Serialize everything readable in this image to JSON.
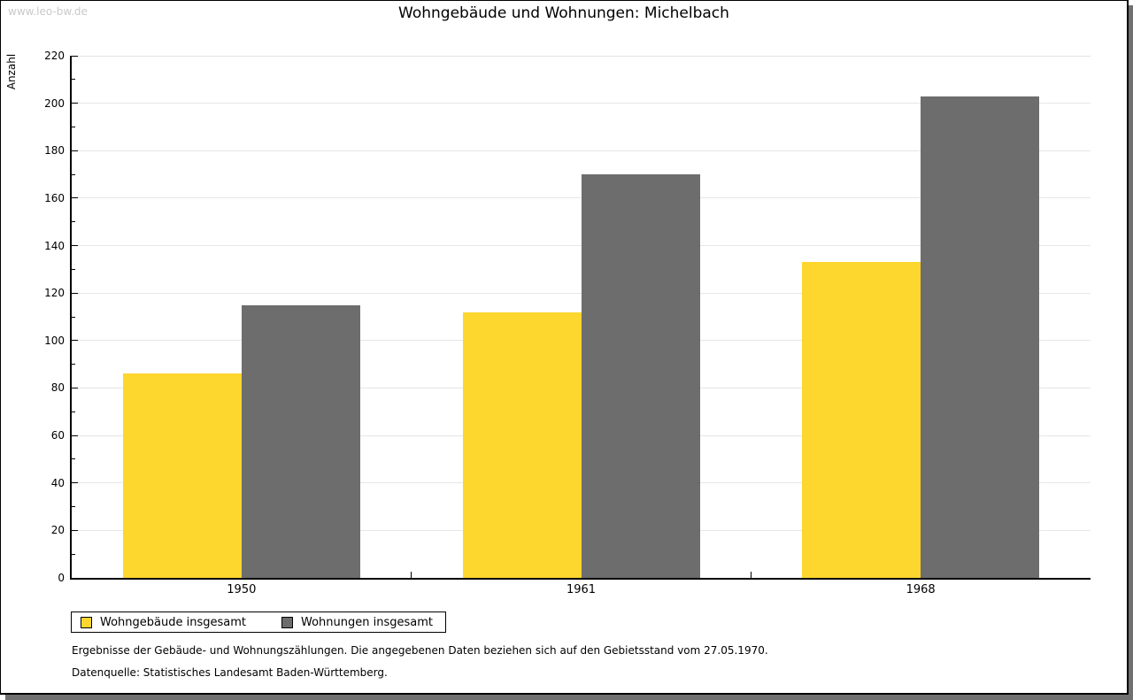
{
  "watermark": "www.leo-bw.de",
  "chart_data": {
    "type": "bar",
    "title": "Wohngebäude und Wohnungen: Michelbach",
    "xlabel": "",
    "ylabel": "Anzahl",
    "categories": [
      "1950",
      "1961",
      "1968"
    ],
    "series": [
      {
        "name": "Wohngebäude insgesamt",
        "color": "#fdd62e",
        "values": [
          86,
          112,
          133
        ]
      },
      {
        "name": "Wohnungen insgesamt",
        "color": "#6d6d6d",
        "values": [
          115,
          170,
          203
        ]
      }
    ],
    "ylim": [
      0,
      220
    ],
    "y_major_step": 20,
    "y_minor_step": 10,
    "y_ticks": [
      0,
      20,
      40,
      60,
      80,
      100,
      120,
      140,
      160,
      180,
      200,
      220
    ],
    "grid": true,
    "legend_position": "bottom-left"
  },
  "footer": {
    "line1": "Ergebnisse der Gebäude- und Wohnungszählungen. Die angegebenen Daten beziehen sich auf den Gebietsstand vom 27.05.1970.",
    "line2": "Datenquelle: Statistisches Landesamt Baden-Württemberg."
  },
  "colors": {
    "axis": "#000000",
    "grid": "#e6e6e6",
    "shadow": "#707070",
    "watermark": "#c9c9c9"
  }
}
